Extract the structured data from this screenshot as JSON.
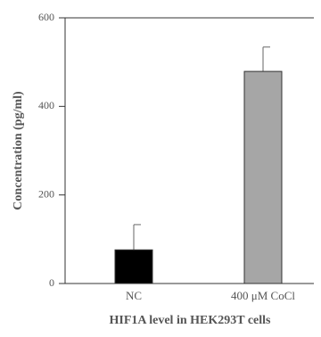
{
  "chart_data": {
    "type": "bar",
    "categories": [
      "NC",
      "400 μM CoCl"
    ],
    "values": [
      76,
      479
    ],
    "errors": [
      57,
      55
    ],
    "bar_colors": [
      "#000000",
      "#a6a6a6"
    ],
    "ylabel": "Concentration (pg/ml)",
    "xlabel": "HIF1A level  in HEK293T cells",
    "ylim": [
      0,
      600
    ],
    "yticks": [
      "0",
      "200",
      "400",
      "600"
    ],
    "grid": false,
    "legend": "none"
  }
}
